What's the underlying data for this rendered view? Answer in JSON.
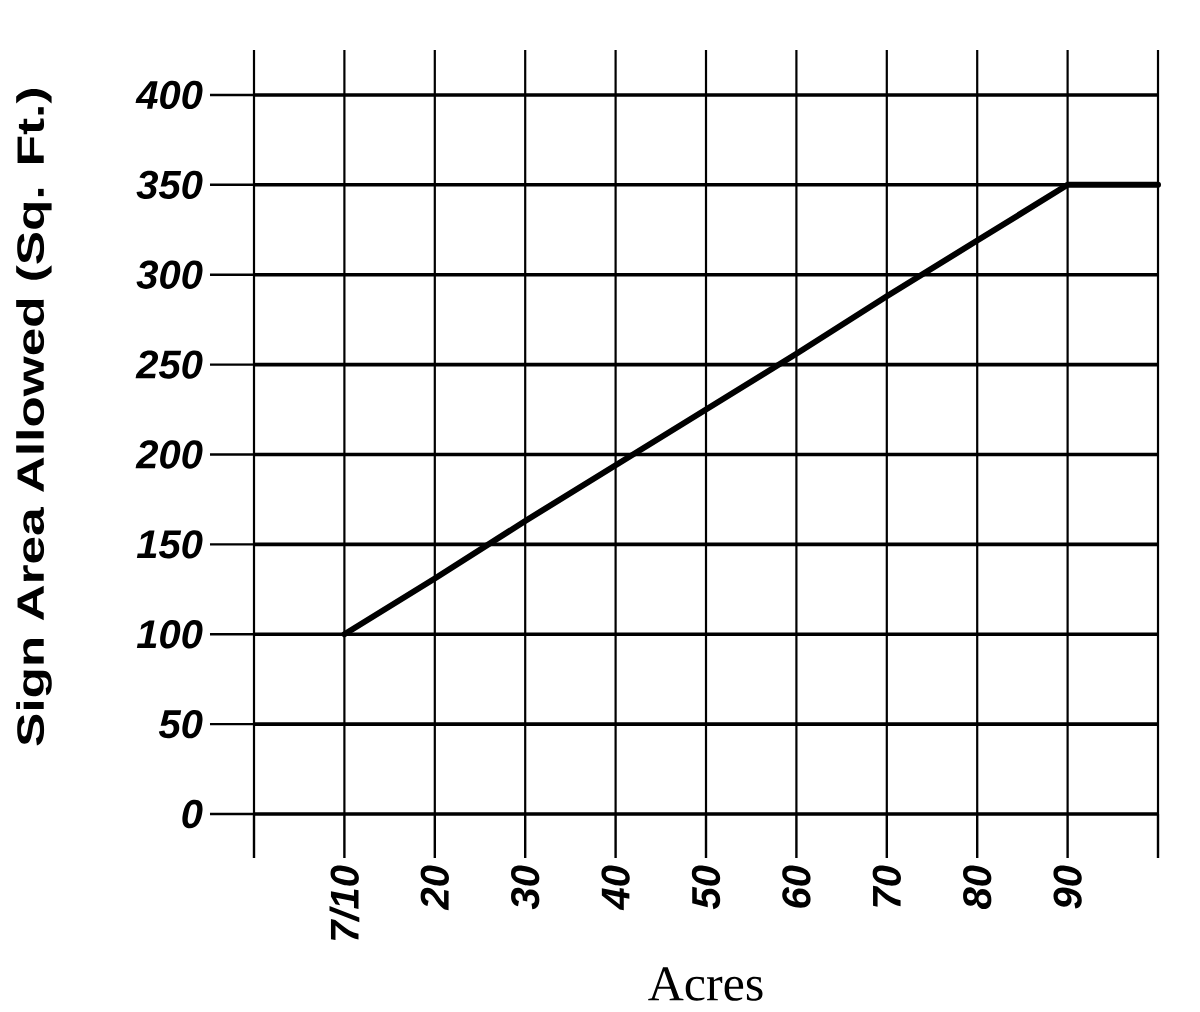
{
  "chart_data": {
    "type": "line",
    "xlabel": "Acres",
    "ylabel": "Sign Area Allowed (Sq. Ft.)",
    "categories": [
      null,
      "7/10",
      "20",
      "30",
      "40",
      "50",
      "60",
      "70",
      "80",
      "90",
      null
    ],
    "values": [
      null,
      100,
      131,
      163,
      194,
      225,
      256,
      288,
      319,
      350,
      350
    ],
    "color": "#000000",
    "ylim": [
      0,
      425
    ],
    "yticks": [
      0,
      50,
      100,
      150,
      200,
      250,
      300,
      350,
      400
    ],
    "grid": true
  }
}
